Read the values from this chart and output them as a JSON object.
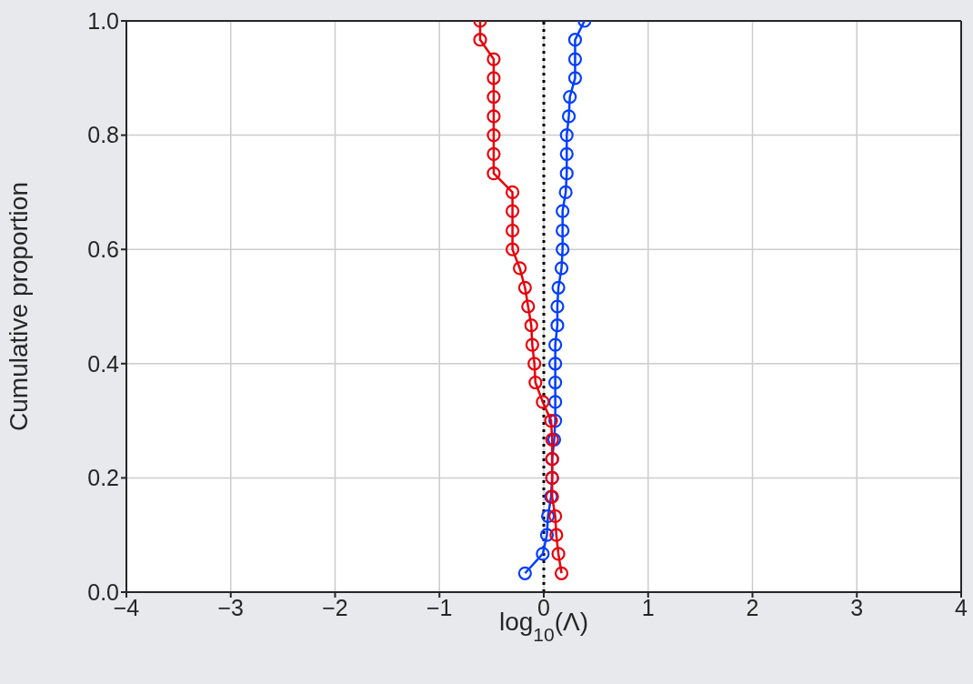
{
  "chart_data": {
    "type": "line",
    "xlabel": "log$_{10}$(Λ)",
    "ylabel": "Cumulative proportion",
    "xlim": [
      -4,
      4
    ],
    "xticks": [
      -4,
      -3,
      -2,
      -1,
      0,
      1,
      2,
      3,
      4
    ],
    "ylim": [
      0,
      1
    ],
    "yticks": [
      {
        "value": 0,
        "label": "0.0"
      },
      {
        "value": 0.2,
        "label": "0.2"
      },
      {
        "value": 0.4,
        "label": "0.4"
      },
      {
        "value": 0.6,
        "label": "0.6"
      },
      {
        "value": 0.8,
        "label": "0.8"
      },
      {
        "value": 1,
        "label": "1.0"
      }
    ],
    "grid": true,
    "marker": "circle",
    "series": [
      {
        "color": "#023eff",
        "x": [
          -0.18,
          -0.01,
          0.03,
          0.04,
          0.07,
          0.08,
          0.08,
          0.1,
          0.11,
          0.11,
          0.11,
          0.11,
          0.11,
          0.13,
          0.13,
          0.14,
          0.17,
          0.18,
          0.18,
          0.18,
          0.21,
          0.22,
          0.22,
          0.22,
          0.24,
          0.25,
          0.3,
          0.3,
          0.3,
          0.39
        ],
        "values": [
          0.033,
          0.067,
          0.1,
          0.133,
          0.167,
          0.2,
          0.233,
          0.267,
          0.3,
          0.333,
          0.367,
          0.4,
          0.433,
          0.467,
          0.5,
          0.533,
          0.567,
          0.6,
          0.633,
          0.667,
          0.7,
          0.733,
          0.767,
          0.8,
          0.833,
          0.867,
          0.9,
          0.933,
          0.967,
          1
        ]
      },
      {
        "color": "#e8000b",
        "x": [
          0.17,
          0.14,
          0.12,
          0.11,
          0.08,
          0.08,
          0.08,
          0.08,
          0.07,
          -0.01,
          -0.08,
          -0.09,
          -0.11,
          -0.12,
          -0.15,
          -0.18,
          -0.23,
          -0.3,
          -0.3,
          -0.3,
          -0.3,
          -0.48,
          -0.48,
          -0.48,
          -0.48,
          -0.48,
          -0.48,
          -0.48,
          -0.61,
          -0.61
        ],
        "values": [
          0.033,
          0.067,
          0.1,
          0.133,
          0.167,
          0.2,
          0.233,
          0.267,
          0.3,
          0.333,
          0.367,
          0.4,
          0.433,
          0.467,
          0.5,
          0.533,
          0.567,
          0.6,
          0.633,
          0.667,
          0.7,
          0.733,
          0.767,
          0.8,
          0.833,
          0.867,
          0.9,
          0.933,
          0.967,
          1
        ]
      }
    ],
    "ref_lines": [
      {
        "axis": "x",
        "value": 0,
        "color": "#000000",
        "line_style": "dotted"
      }
    ]
  }
}
